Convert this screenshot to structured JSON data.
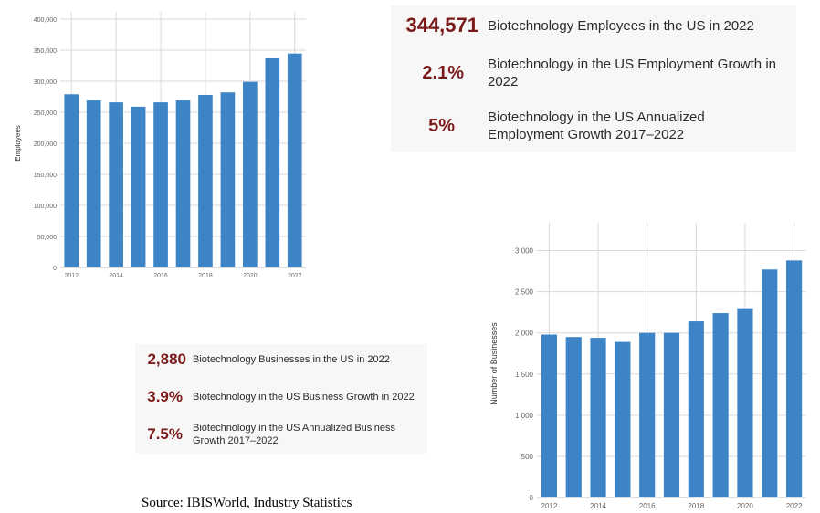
{
  "stats_top": [
    {
      "value": "344,571",
      "label": "Biotechnology Employees in the US in 2022"
    },
    {
      "value": "2.1%",
      "label": "Biotechnology in the US Employment Growth in 2022"
    },
    {
      "value": "5%",
      "label": "Biotechnology in the US Annualized Employment Growth 2017–2022"
    }
  ],
  "stats_bottom": [
    {
      "value": "2,880",
      "label": "Biotechnology Businesses in the US in 2022"
    },
    {
      "value": "3.9%",
      "label": "Biotechnology in the US Business Growth in 2022"
    },
    {
      "value": "7.5%",
      "label": "Biotechnology in the US Annualized Business Growth 2017–2022"
    }
  ],
  "source": "Source: IBISWorld, Industry Statistics",
  "colors": {
    "bar": "#3d84c6",
    "value": "#7b1a1a",
    "grid": "#d9d9d9"
  },
  "chart_data": [
    {
      "type": "bar",
      "xlabel": "",
      "ylabel": "Employees",
      "categories": [
        "2012",
        "2013",
        "2014",
        "2015",
        "2016",
        "2017",
        "2018",
        "2019",
        "2020",
        "2021",
        "2022"
      ],
      "x_tick_labels": [
        "2012",
        "2014",
        "2016",
        "2018",
        "2020",
        "2022"
      ],
      "values": [
        279000,
        269000,
        266000,
        259000,
        266000,
        269000,
        278000,
        282000,
        299000,
        337000,
        344571
      ],
      "ylim": [
        0,
        400000
      ],
      "y_ticks": [
        "0",
        "50,000",
        "100,000",
        "150,000",
        "200,000",
        "250,000",
        "300,000",
        "350,000",
        "400,000"
      ],
      "grid": true
    },
    {
      "type": "bar",
      "xlabel": "",
      "ylabel": "Number of Businesses",
      "categories": [
        "2012",
        "2013",
        "2014",
        "2015",
        "2016",
        "2017",
        "2018",
        "2019",
        "2020",
        "2021",
        "2022"
      ],
      "x_tick_labels": [
        "2012",
        "2014",
        "2016",
        "2018",
        "2020",
        "2022"
      ],
      "values": [
        1980,
        1950,
        1940,
        1890,
        2000,
        2000,
        2140,
        2240,
        2300,
        2770,
        2880
      ],
      "ylim": [
        0,
        3250
      ],
      "y_ticks": [
        "0",
        "500",
        "1,000",
        "1,500",
        "2,000",
        "2,500",
        "3,000"
      ],
      "grid": true
    }
  ]
}
